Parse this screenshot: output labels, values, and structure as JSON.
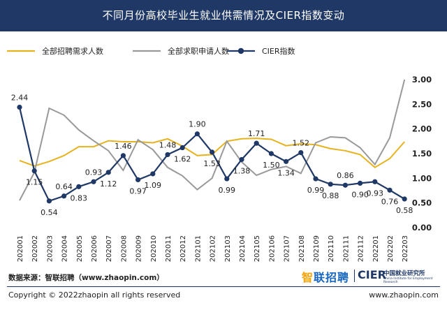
{
  "title": "不同月份高校毕业生就业供需情况及CIER指数变动",
  "source_prefix": "数据来源：",
  "source_text": "智联招聘（www.zhaopin.com）",
  "copyright": "Copyright ©  2022zhaopin all rights reserved",
  "website": "www.zhaopin.com",
  "logo_zhilian": "智联招聘",
  "logo_zhilian_first": "智",
  "logo_zhilian_rest": "联招聘",
  "logo_cier": "CIER",
  "logo_cier_cn": "中国就业研究所",
  "logo_cier_en": "China Institute for Employment Research",
  "colors": {
    "header": "#1f3866",
    "demand": "#e6b21e",
    "seekers": "#999999",
    "cier": "#1f3866"
  },
  "chart_data": {
    "type": "line",
    "categories": [
      "202001",
      "202002",
      "202003",
      "202004",
      "202005",
      "202006",
      "202007",
      "202008",
      "202009",
      "202010",
      "202011",
      "202012",
      "202101",
      "202102",
      "202103",
      "202104",
      "202105",
      "202106",
      "202107",
      "202108",
      "202109",
      "202110",
      "202111",
      "202112",
      "202201",
      "202202",
      "202203"
    ],
    "y_right": {
      "range": [
        0,
        3.0
      ],
      "ticks": [
        "0.00",
        "0.50",
        "1.00",
        "1.50",
        "2.00",
        "2.50",
        "3.00"
      ]
    },
    "legend_position": "top",
    "grid": false,
    "series": [
      {
        "name": "全部招聘需求人数",
        "axis": "none",
        "values": [
          1.36,
          1.25,
          1.34,
          1.46,
          1.64,
          1.64,
          1.76,
          1.74,
          1.74,
          1.72,
          1.8,
          1.65,
          1.46,
          1.48,
          1.75,
          1.8,
          1.81,
          1.79,
          1.66,
          1.7,
          1.68,
          1.6,
          1.56,
          1.48,
          1.22,
          1.4,
          1.74
        ]
      },
      {
        "name": "全部求职申请人数",
        "axis": "none",
        "values": [
          0.55,
          1.12,
          2.42,
          2.28,
          1.98,
          1.76,
          1.56,
          1.16,
          1.78,
          1.58,
          1.22,
          1.05,
          0.77,
          1.0,
          1.75,
          1.33,
          1.06,
          1.18,
          1.24,
          1.1,
          1.72,
          1.84,
          1.82,
          1.62,
          1.28,
          1.82,
          3.0
        ]
      },
      {
        "name": "CIER指数",
        "axis": "right",
        "values": [
          2.44,
          1.15,
          0.54,
          0.64,
          0.83,
          0.93,
          1.12,
          1.46,
          0.97,
          1.09,
          1.48,
          1.62,
          1.9,
          1.53,
          0.99,
          1.38,
          1.71,
          1.5,
          1.34,
          1.52,
          0.99,
          0.88,
          0.86,
          0.9,
          0.93,
          0.76,
          0.58
        ],
        "labels": [
          "2.44",
          "1.15",
          "0.54",
          "0.64",
          "0.83",
          "0.93",
          "1.12",
          "1.46",
          "0.97",
          "1.09",
          "1.48",
          "1.62",
          "1.90",
          "1.53",
          "0.99",
          "1.38",
          "1.71",
          "1.50",
          "1.34",
          "1.52",
          "0.99",
          "0.88",
          "0.86",
          "0.90",
          "0.93",
          "0.76",
          "0.58"
        ]
      }
    ]
  }
}
